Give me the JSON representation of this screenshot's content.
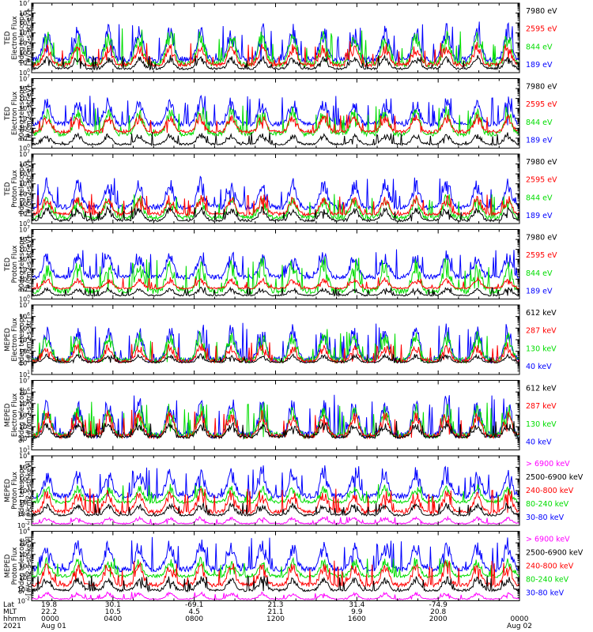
{
  "chart_data": [
    {
      "type": "line",
      "ylabel_lines": [
        "TED",
        "Electron Flux",
        "0deg telescope",
        "[#/cm2-s-str-eV]"
      ],
      "yscale": "log",
      "ylim_exp": [
        0,
        7
      ],
      "channels": [
        {
          "label": "7980 eV",
          "color": "#000000"
        },
        {
          "label": "2595 eV",
          "color": "#ff0000"
        },
        {
          "label": "844 eV",
          "color": "#00dd00"
        },
        {
          "label": "189 eV",
          "color": "#0000ff"
        }
      ],
      "bands": [
        [
          0.3,
          1.8
        ],
        [
          0.6,
          3.2
        ],
        [
          0.6,
          4.5
        ],
        [
          1.0,
          5.2
        ]
      ]
    },
    {
      "type": "line",
      "ylabel_lines": [
        "TED",
        "Electron Flux",
        "30deg telescope",
        "[#/cm2-s-str-eV]"
      ],
      "yscale": "log",
      "ylim_exp": [
        0,
        7
      ],
      "channels": [
        {
          "label": "7980 eV",
          "color": "#000000"
        },
        {
          "label": "2595 eV",
          "color": "#ff0000"
        },
        {
          "label": "844 eV",
          "color": "#00dd00"
        },
        {
          "label": "189 eV",
          "color": "#0000ff"
        }
      ],
      "bands": [
        [
          0.3,
          1.6
        ],
        [
          1.5,
          3.6
        ],
        [
          1.2,
          4.4
        ],
        [
          2.2,
          5.3
        ]
      ]
    },
    {
      "type": "line",
      "ylabel_lines": [
        "TED",
        "Proton Flux",
        "0deg telescope",
        "[#/cm2-s-str-eV]"
      ],
      "yscale": "log",
      "ylim_exp": [
        0,
        7
      ],
      "channels": [
        {
          "label": "7980 eV",
          "color": "#000000"
        },
        {
          "label": "2595 eV",
          "color": "#ff0000"
        },
        {
          "label": "844 eV",
          "color": "#00dd00"
        },
        {
          "label": "189 eV",
          "color": "#0000ff"
        }
      ],
      "bands": [
        [
          0.2,
          1.8
        ],
        [
          0.8,
          3.0
        ],
        [
          0.4,
          3.0
        ],
        [
          1.4,
          4.8
        ]
      ]
    },
    {
      "type": "line",
      "ylabel_lines": [
        "TED",
        "Proton Flux",
        "30deg telescope",
        "[#/cm2-s-str-eV]"
      ],
      "yscale": "log",
      "ylim_exp": [
        0,
        7
      ],
      "channels": [
        {
          "label": "7980 eV",
          "color": "#000000"
        },
        {
          "label": "2595 eV",
          "color": "#ff0000"
        },
        {
          "label": "844 eV",
          "color": "#00dd00"
        },
        {
          "label": "189 eV",
          "color": "#0000ff"
        }
      ],
      "bands": [
        [
          0.3,
          1.2
        ],
        [
          1.0,
          2.2
        ],
        [
          0.5,
          4.4
        ],
        [
          2.0,
          5.0
        ]
      ]
    },
    {
      "type": "line",
      "ylabel_lines": [
        "MEPED",
        "Electron Flux",
        "0deg telescope",
        "[#/cm2-s-str]"
      ],
      "yscale": "log",
      "ylim_exp": [
        1,
        7
      ],
      "channels": [
        {
          "label": "612 keV",
          "color": "#000000"
        },
        {
          "label": "287 keV",
          "color": "#ff0000"
        },
        {
          "label": "130 keV",
          "color": "#00dd00"
        },
        {
          "label": "40 keV",
          "color": "#0000ff"
        }
      ],
      "bands": [
        [
          2.0,
          2.8
        ],
        [
          2.0,
          3.8
        ],
        [
          2.0,
          5.0
        ],
        [
          2.0,
          5.6
        ]
      ]
    },
    {
      "type": "line",
      "ylabel_lines": [
        "MEPED",
        "Electron Flux",
        "90deg telescope",
        "[#/cm2-s-str]"
      ],
      "yscale": "log",
      "ylim_exp": [
        1,
        7
      ],
      "channels": [
        {
          "label": "612 keV",
          "color": "#000000"
        },
        {
          "label": "287 keV",
          "color": "#ff0000"
        },
        {
          "label": "130 keV",
          "color": "#00dd00"
        },
        {
          "label": "40 keV",
          "color": "#0000ff"
        }
      ],
      "bands": [
        [
          2.0,
          3.5
        ],
        [
          2.0,
          4.6
        ],
        [
          2.0,
          5.2
        ],
        [
          2.0,
          5.8
        ]
      ]
    },
    {
      "type": "line",
      "ylabel_lines": [
        "MEPED",
        "Proton Flux",
        "0deg telescope",
        "[#/cm2-s-str-keV]"
      ],
      "yscale": "log",
      "ylim_exp": [
        -2,
        4
      ],
      "channels": [
        {
          "label": "> 6900 keV",
          "color": "#ff00ff"
        },
        {
          "label": "2500-6900 keV",
          "color": "#000000"
        },
        {
          "label": "240-800 keV",
          "color": "#ff0000"
        },
        {
          "label": "80-240 keV",
          "color": "#00dd00"
        },
        {
          "label": "30-80 keV",
          "color": "#0000ff"
        }
      ],
      "bands": [
        [
          -1.9,
          -1.2
        ],
        [
          -1.2,
          0.0
        ],
        [
          -1.0,
          1.2
        ],
        [
          -0.1,
          1.6
        ],
        [
          0.3,
          3.3
        ]
      ]
    },
    {
      "type": "line",
      "ylabel_lines": [
        "MEPED",
        "Proton Flux",
        "90deg telescope",
        "[#/cm2-s-str-keV]"
      ],
      "yscale": "log",
      "ylim_exp": [
        -2,
        4
      ],
      "channels": [
        {
          "label": "> 6900 keV",
          "color": "#ff00ff"
        },
        {
          "label": "2500-6900 keV",
          "color": "#000000"
        },
        {
          "label": "240-800 keV",
          "color": "#ff0000"
        },
        {
          "label": "80-240 keV",
          "color": "#00dd00"
        },
        {
          "label": "30-80 keV",
          "color": "#0000ff"
        }
      ],
      "bands": [
        [
          -1.9,
          -1.2
        ],
        [
          -1.2,
          0.2
        ],
        [
          -0.8,
          1.5
        ],
        [
          0.0,
          1.8
        ],
        [
          0.5,
          3.5
        ]
      ]
    }
  ],
  "footer": {
    "row_labels": [
      "Lat",
      "MLT",
      "hhmm",
      "2021"
    ],
    "columns": [
      {
        "lat": "19.8",
        "mlt": "22.2",
        "hhmm": "0000",
        "date": "Aug 01"
      },
      {
        "lat": "30.1",
        "mlt": "10.5",
        "hhmm": "0400",
        "date": ""
      },
      {
        "lat": "-69.1",
        "mlt": "4.5",
        "hhmm": "0800",
        "date": ""
      },
      {
        "lat": "21.3",
        "mlt": "21.1",
        "hhmm": "1200",
        "date": ""
      },
      {
        "lat": "31.4",
        "mlt": "9.9",
        "hhmm": "1600",
        "date": ""
      },
      {
        "lat": "-74.9",
        "mlt": "20.8",
        "hhmm": "2000",
        "date": ""
      },
      {
        "lat": "",
        "mlt": "",
        "hhmm": "0000",
        "date": "Aug 02"
      }
    ]
  }
}
